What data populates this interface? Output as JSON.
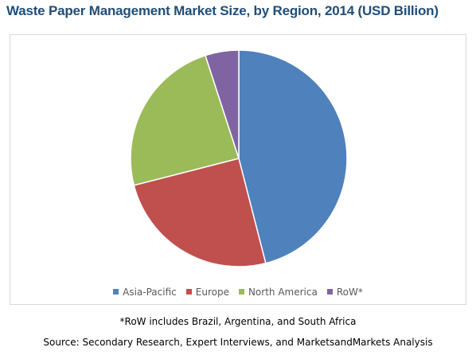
{
  "chart_data": {
    "type": "pie",
    "title": "Waste Paper Management Market Size, by Region, 2014 (USD Billion)",
    "categories": [
      "Asia-Pacific",
      "Europe",
      "North America",
      "RoW*"
    ],
    "values": [
      46,
      25,
      24,
      5
    ],
    "colors": [
      "#4f81bd",
      "#c0504d",
      "#9bbb59",
      "#8064a2"
    ],
    "legend_position": "bottom",
    "footnote": "*RoW includes Brazil, Argentina, and South Africa",
    "source": "Source: Secondary Research, Expert Interviews, and MarketsandMarkets Analysis"
  }
}
